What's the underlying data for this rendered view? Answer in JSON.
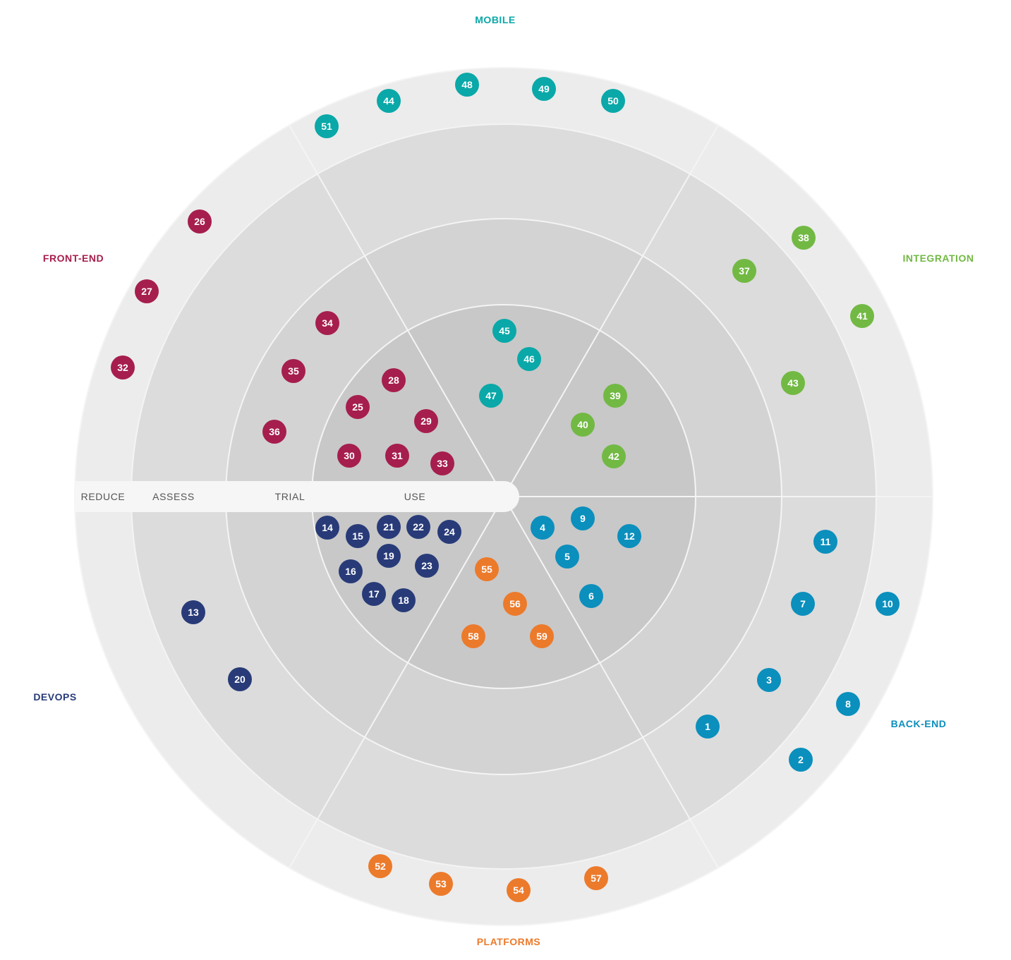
{
  "colors": {
    "ring_use": "#c8c8c8",
    "ring_trial": "#d3d3d3",
    "ring_assess": "#dcdcdc",
    "ring_reduce": "#ececec",
    "divider": "#f4f4f4",
    "ring_label_bar": "#f6f6f6",
    "ring_label_text": "#555555"
  },
  "rings": [
    {
      "id": "use",
      "label": "USE"
    },
    {
      "id": "trial",
      "label": "TRIAL"
    },
    {
      "id": "assess",
      "label": "ASSESS"
    },
    {
      "id": "reduce",
      "label": "REDUCE"
    }
  ],
  "quadrants": [
    {
      "id": "mobile",
      "label": "MOBILE",
      "color": "#0aa8a8"
    },
    {
      "id": "integration",
      "label": "INTEGRATION",
      "color": "#72b944"
    },
    {
      "id": "back-end",
      "label": "BACK-END",
      "color": "#0b8fbd"
    },
    {
      "id": "platforms",
      "label": "PLATFORMS",
      "color": "#ec7a2b"
    },
    {
      "id": "devops",
      "label": "DEVOPS",
      "color": "#283b78"
    },
    {
      "id": "front-end",
      "label": "FRONT-END",
      "color": "#a61e4d"
    }
  ],
  "blips": [
    {
      "n": "1",
      "q": "back-end"
    },
    {
      "n": "2",
      "q": "back-end"
    },
    {
      "n": "3",
      "q": "back-end"
    },
    {
      "n": "4",
      "q": "back-end"
    },
    {
      "n": "5",
      "q": "back-end"
    },
    {
      "n": "6",
      "q": "back-end"
    },
    {
      "n": "7",
      "q": "back-end"
    },
    {
      "n": "8",
      "q": "back-end"
    },
    {
      "n": "9",
      "q": "back-end"
    },
    {
      "n": "10",
      "q": "back-end"
    },
    {
      "n": "11",
      "q": "back-end"
    },
    {
      "n": "12",
      "q": "back-end"
    },
    {
      "n": "13",
      "q": "devops"
    },
    {
      "n": "14",
      "q": "devops"
    },
    {
      "n": "15",
      "q": "devops"
    },
    {
      "n": "16",
      "q": "devops"
    },
    {
      "n": "17",
      "q": "devops"
    },
    {
      "n": "18",
      "q": "devops"
    },
    {
      "n": "19",
      "q": "devops"
    },
    {
      "n": "20",
      "q": "devops"
    },
    {
      "n": "21",
      "q": "devops"
    },
    {
      "n": "22",
      "q": "devops"
    },
    {
      "n": "23",
      "q": "devops"
    },
    {
      "n": "24",
      "q": "devops"
    },
    {
      "n": "25",
      "q": "front-end"
    },
    {
      "n": "26",
      "q": "front-end"
    },
    {
      "n": "27",
      "q": "front-end"
    },
    {
      "n": "28",
      "q": "front-end"
    },
    {
      "n": "29",
      "q": "front-end"
    },
    {
      "n": "30",
      "q": "front-end"
    },
    {
      "n": "31",
      "q": "front-end"
    },
    {
      "n": "32",
      "q": "front-end"
    },
    {
      "n": "33",
      "q": "front-end"
    },
    {
      "n": "34",
      "q": "front-end"
    },
    {
      "n": "35",
      "q": "front-end"
    },
    {
      "n": "36",
      "q": "front-end"
    },
    {
      "n": "37",
      "q": "integration"
    },
    {
      "n": "38",
      "q": "integration"
    },
    {
      "n": "39",
      "q": "integration"
    },
    {
      "n": "40",
      "q": "integration"
    },
    {
      "n": "41",
      "q": "integration"
    },
    {
      "n": "42",
      "q": "integration"
    },
    {
      "n": "43",
      "q": "integration"
    },
    {
      "n": "44",
      "q": "mobile"
    },
    {
      "n": "45",
      "q": "mobile"
    },
    {
      "n": "46",
      "q": "mobile"
    },
    {
      "n": "47",
      "q": "mobile"
    },
    {
      "n": "48",
      "q": "mobile"
    },
    {
      "n": "49",
      "q": "mobile"
    },
    {
      "n": "50",
      "q": "mobile"
    },
    {
      "n": "51",
      "q": "mobile"
    },
    {
      "n": "52",
      "q": "platforms"
    },
    {
      "n": "53",
      "q": "platforms"
    },
    {
      "n": "54",
      "q": "platforms"
    },
    {
      "n": "55",
      "q": "platforms"
    },
    {
      "n": "56",
      "q": "platforms"
    },
    {
      "n": "57",
      "q": "platforms"
    },
    {
      "n": "58",
      "q": "platforms"
    },
    {
      "n": "59",
      "q": "platforms"
    }
  ]
}
